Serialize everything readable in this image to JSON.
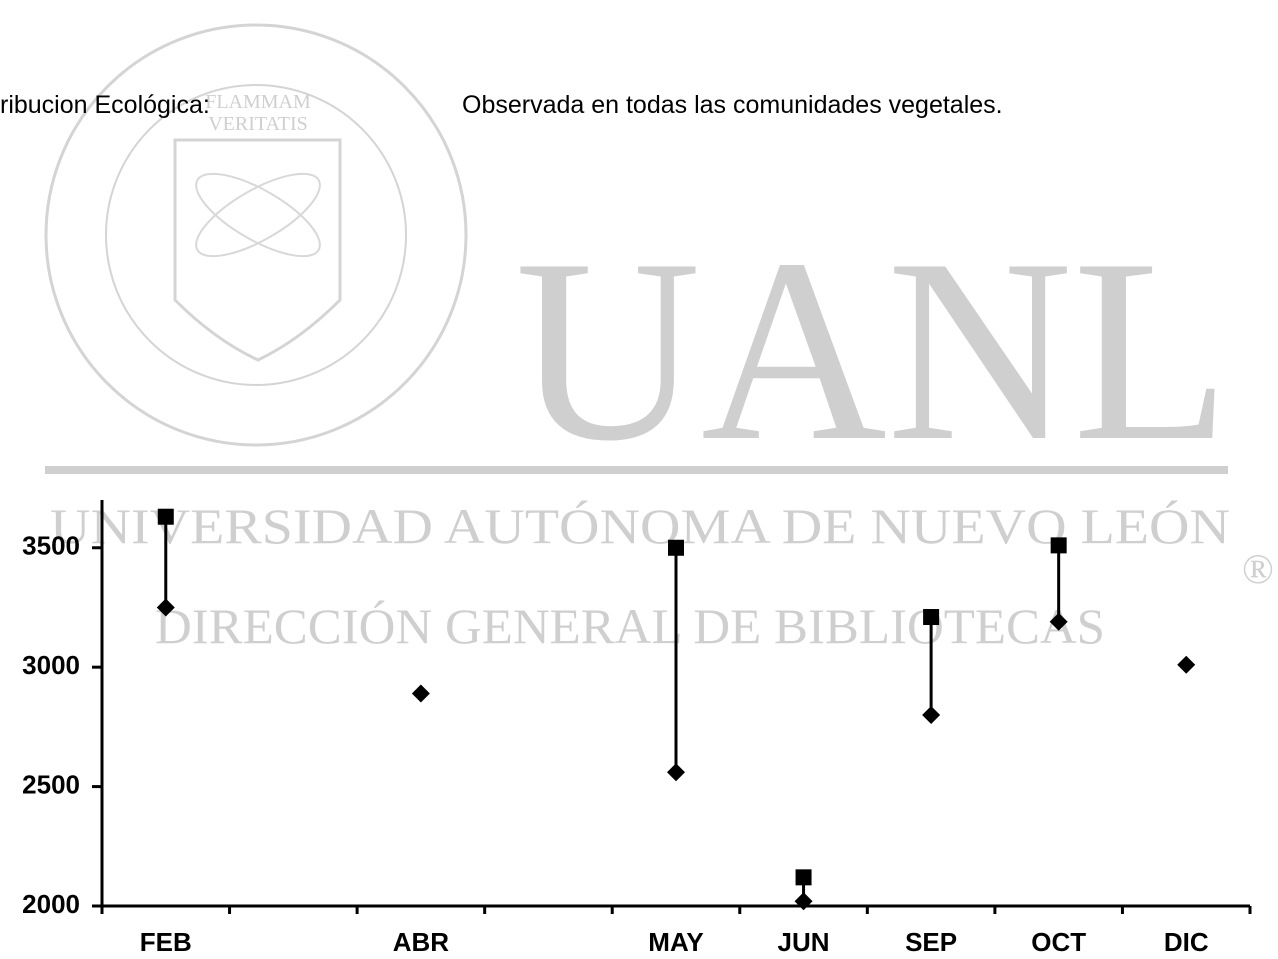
{
  "header": {
    "label": "ribucion Ecológica:",
    "text": "Observada en todas las comunidades vegetales."
  },
  "watermark": {
    "logo": "UANL",
    "university": "UNIVERSIDAD AUTÓNOMA DE NUEVO LEÓN",
    "department": "DIRECCIÓN GENERAL DE BIBLIOTECAS",
    "mark": "®",
    "motto_1": "FLAMMAM",
    "motto_2": "VERITATIS"
  },
  "chart_data": {
    "type": "high-low",
    "categories": [
      "FEB",
      null,
      "ABR",
      null,
      "MAY",
      "JUN",
      "SEP",
      "OCT",
      "DIC"
    ],
    "series": [
      {
        "color": "#000000",
        "marker": "square",
        "values": [
          3630,
          null,
          null,
          null,
          3500,
          2120,
          3210,
          3510,
          null
        ]
      },
      {
        "color": "#000000",
        "marker": "diamond",
        "values": [
          3250,
          null,
          2890,
          null,
          2560,
          2020,
          2800,
          3190,
          3010
        ]
      }
    ],
    "ylim": [
      2000,
      3700
    ],
    "yticks": [
      2000,
      2500,
      3000,
      3500
    ]
  }
}
